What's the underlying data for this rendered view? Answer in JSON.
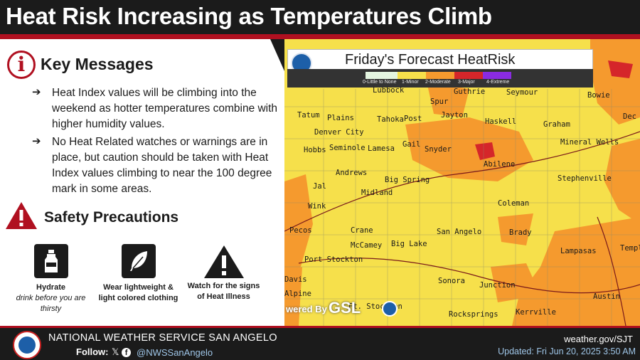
{
  "header": {
    "title": "Heat Risk Increasing as Temperatures Climb"
  },
  "key_messages": {
    "icon": "info-icon",
    "title": "Key Messages",
    "bullets": [
      "Heat Index values will be climbing into the weekend as hotter temperatures combine with higher humidity values.",
      "No Heat Related watches or warnings are in place, but caution should be taken with Heat Index values climbing to near the 100 degree mark in some areas."
    ]
  },
  "safety": {
    "icon": "warning-triangle-icon",
    "title": "Safety Precautions",
    "tiles": [
      {
        "icon": "water-bottle-icon",
        "label": "Hydrate",
        "sub": "drink before you are thirsty"
      },
      {
        "icon": "feather-icon",
        "label": "Wear lightweight & light colored clothing",
        "sub": ""
      },
      {
        "icon": "exclamation-triangle-icon",
        "label": "Watch for the signs of Heat Illness",
        "sub": ""
      }
    ]
  },
  "map": {
    "title": "Friday's Forecast HeatRisk",
    "legend": [
      {
        "label": "0-Little to None",
        "color": "#e4f5e0"
      },
      {
        "label": "1-Minor",
        "color": "#f6e04b"
      },
      {
        "label": "2-Moderate",
        "color": "#f59a2e"
      },
      {
        "label": "3-Major",
        "color": "#d5262a"
      },
      {
        "label": "4-Extreme",
        "color": "#8a2be2"
      }
    ],
    "cities": [
      "Lubbock",
      "Guthrie",
      "Seymour",
      "Bowie",
      "Spur",
      "Tatum",
      "Plains",
      "Tahoka",
      "Post",
      "Jayton",
      "Haskell",
      "Graham",
      "Dec",
      "Denver City",
      "Hobbs",
      "Seminole",
      "Lamesa",
      "Gail",
      "Snyder",
      "Mineral Wells",
      "Abilene",
      "Andrews",
      "Big Spring",
      "Stephenville",
      "Jal",
      "Midland",
      "Wink",
      "Coleman",
      "Pecos",
      "Crane",
      "San Angelo",
      "Brady",
      "McCamey",
      "Big Lake",
      "Lampasas",
      "Templ",
      "Port Stockton",
      "Sonora",
      "Junction",
      "Alpine",
      "Ft. Stockton",
      "Rocksprings",
      "Kerrville",
      "Austin",
      "Davis"
    ],
    "powered_by": "wered By",
    "gsl": "GSL"
  },
  "footer": {
    "office": "NATIONAL WEATHER SERVICE SAN ANGELO",
    "follow": "Follow:",
    "social_icons": "x-icon facebook-icon",
    "handle": "@NWSSanAngelo",
    "website": "weather.gov/SJT",
    "updated": "Updated: Fri Jun 20, 2025 3:50 AM"
  }
}
